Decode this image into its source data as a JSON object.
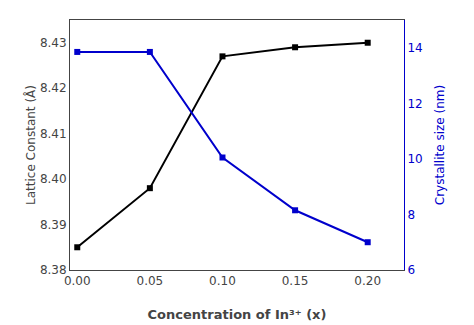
{
  "chart_data": {
    "type": "line",
    "x": [
      0.0,
      0.05,
      0.1,
      0.15,
      0.2
    ],
    "xlabel": "Concentration of In³⁺ (x)",
    "ylabel": "Lattice Constant (Å)",
    "y2label": "Crystallite size (nm)",
    "series": [
      {
        "color": "#000000",
        "marker": "square",
        "values": [
          8.385,
          8.398,
          8.427,
          8.429,
          8.43
        ]
      },
      {
        "color": "#0000cc",
        "marker": "square",
        "axis": "y2",
        "values": [
          13.85,
          13.85,
          10.05,
          8.15,
          7.0
        ]
      }
    ],
    "xlim": [
      -0.005,
      0.225
    ],
    "xticks": [
      {
        "value": 0,
        "label": "0.00"
      },
      0.05,
      {
        "value": 0.1,
        "label": "0.10"
      },
      0.15,
      {
        "value": 0.2,
        "label": "0.20"
      }
    ],
    "ylim": [
      8.38,
      8.435
    ],
    "yticks": [
      8.38,
      8.39,
      {
        "value": 8.4,
        "label": "8.40"
      },
      8.41,
      8.42,
      8.43
    ],
    "y2lim": [
      6,
      15
    ],
    "y2ticks": [
      6,
      8,
      10,
      12,
      14
    ],
    "grid": false
  }
}
